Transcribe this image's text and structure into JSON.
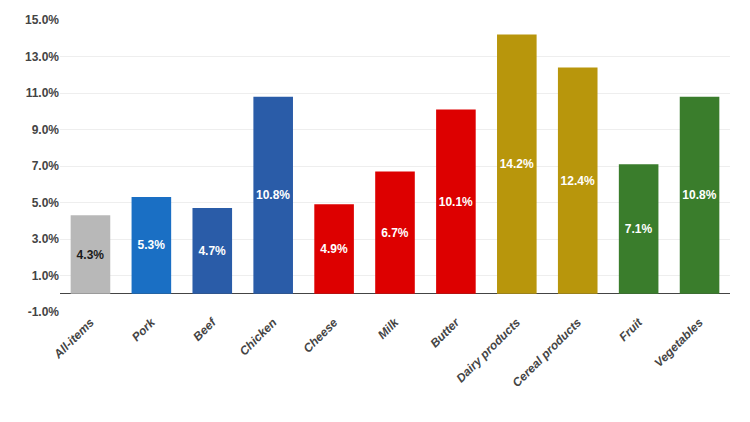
{
  "chart_data": {
    "type": "bar",
    "categories": [
      "All-items",
      "Pork",
      "Beef",
      "Chicken",
      "Cheese",
      "Milk",
      "Butter",
      "Dairy products",
      "Cereal products",
      "Fruit",
      "Vegetables"
    ],
    "values": [
      4.3,
      5.3,
      4.7,
      10.8,
      4.9,
      6.7,
      10.1,
      14.2,
      12.4,
      7.1,
      10.8
    ],
    "value_labels": [
      "4.3%",
      "5.3%",
      "4.7%",
      "10.8%",
      "4.9%",
      "6.7%",
      "10.1%",
      "14.2%",
      "12.4%",
      "7.1%",
      "10.8%"
    ],
    "colors": [
      "#b8b8b8",
      "#1a6fc4",
      "#2a5ca8",
      "#2a5ca8",
      "#dd0000",
      "#dd0000",
      "#dd0000",
      "#b8960c",
      "#b8960c",
      "#3a7d2c",
      "#3a7d2c"
    ],
    "ylim": [
      -1.0,
      15.0
    ],
    "yticks": [
      {
        "value": -1.0,
        "label": "-1.0%"
      },
      {
        "value": 1.0,
        "label": "1.0%"
      },
      {
        "value": 3.0,
        "label": "3.0%"
      },
      {
        "value": 5.0,
        "label": "5.0%"
      },
      {
        "value": 7.0,
        "label": "7.0%"
      },
      {
        "value": 9.0,
        "label": "9.0%"
      },
      {
        "value": 11.0,
        "label": "11.0%"
      },
      {
        "value": 13.0,
        "label": "13.0%"
      },
      {
        "value": 15.0,
        "label": "15.0%"
      }
    ],
    "grid": true,
    "data_labels": true
  }
}
